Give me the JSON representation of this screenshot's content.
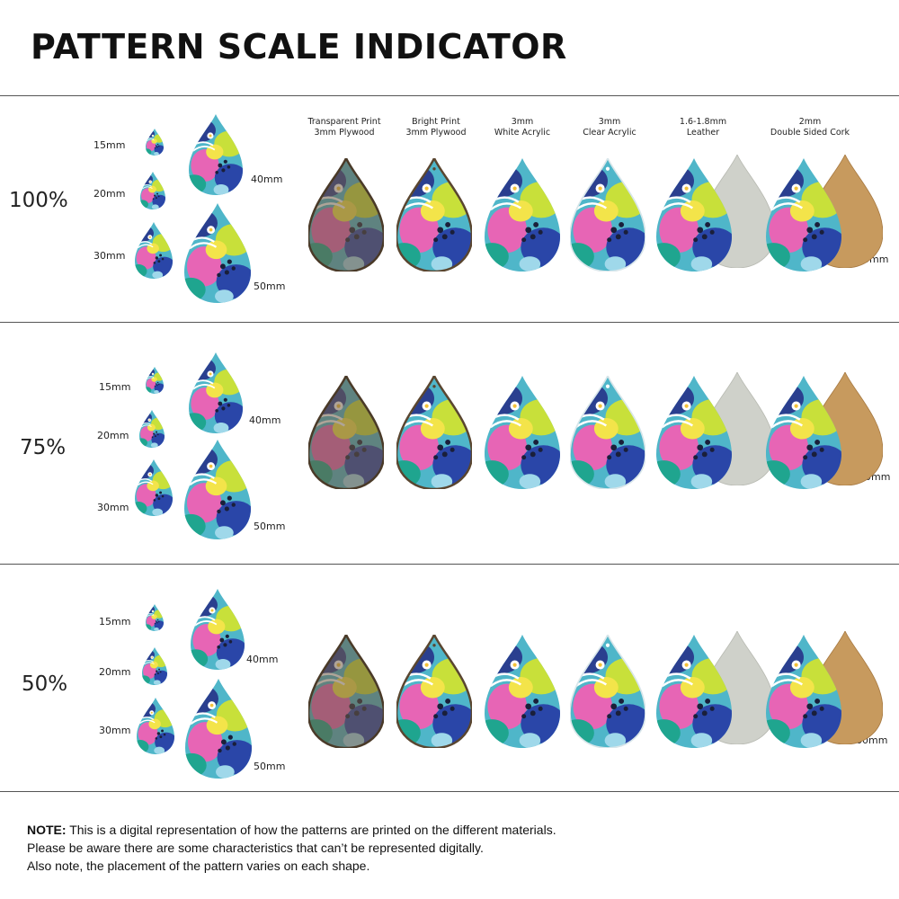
{
  "title": "PATTERN SCALE INDICATOR",
  "materials": [
    {
      "line1": "Transparent Print",
      "line2": "3mm Plywood"
    },
    {
      "line1": "Bright Print",
      "line2": "3mm Plywood"
    },
    {
      "line1": "3mm",
      "line2": "White Acrylic"
    },
    {
      "line1": "3mm",
      "line2": "Clear Acrylic"
    },
    {
      "line1": "1.6-1.8mm",
      "line2": "Leather"
    },
    {
      "line1": "2mm",
      "line2": "Double Sided Cork"
    }
  ],
  "rows": [
    {
      "scale": "100%",
      "sizes": {
        "s15": "15mm",
        "s20": "20mm",
        "s30": "30mm",
        "s40": "40mm",
        "s50": "50mm",
        "s60": "60mm"
      }
    },
    {
      "scale": "75%",
      "sizes": {
        "s15": "15mm",
        "s20": "20mm",
        "s30": "30mm",
        "s40": "40mm",
        "s50": "50mm",
        "s60": "60mm"
      }
    },
    {
      "scale": "50%",
      "sizes": {
        "s15": "15mm",
        "s20": "20mm",
        "s30": "30mm",
        "s40": "40mm",
        "s50": "50mm",
        "s60": "60mm"
      }
    }
  ],
  "note": {
    "label": "NOTE:",
    "line1": " This is a digital representation of how the patterns are printed on the different materials.",
    "line2": "Please be aware there are some characteristics that can’t be represented digitally.",
    "line3": "Also note, the placement of the pattern varies on each shape."
  }
}
